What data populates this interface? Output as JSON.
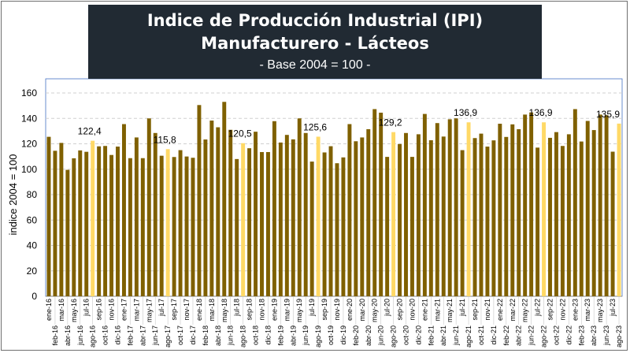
{
  "chart_data": {
    "type": "bar",
    "title": "Indice de Producción Industrial (IPI) Manufacturero - Lácteos",
    "subtitle": "- Base 2004 = 100 -",
    "xlabel": "",
    "ylabel": "indice 2004 = 100",
    "ylim": [
      0,
      160
    ],
    "yticks": [
      "0",
      "20",
      "40",
      "60",
      "80",
      "100",
      "120",
      "140",
      "160"
    ],
    "grid": true,
    "colors": {
      "normal": "#7f6000",
      "highlight": "#ffd966"
    },
    "categories": [
      "ene-16",
      "feb-16",
      "mar-16",
      "abr-16",
      "may-16",
      "jun-16",
      "jul-16",
      "ago-16",
      "sep-16",
      "oct-16",
      "nov-16",
      "dic-16",
      "ene-17",
      "feb-17",
      "mar-17",
      "abr-17",
      "may-17",
      "jun-17",
      "jul-17",
      "ago-17",
      "sep-17",
      "oct-17",
      "nov-17",
      "dic-17",
      "ene-18",
      "feb-18",
      "mar-18",
      "abr-18",
      "may-18",
      "jun-18",
      "jul-18",
      "ago-18",
      "sep-18",
      "oct-18",
      "nov-18",
      "dic-18",
      "ene-19",
      "feb-19",
      "mar-19",
      "abr-19",
      "may-19",
      "jun-19",
      "jul-19",
      "ago-19",
      "sep-19",
      "oct-19",
      "nov-19",
      "dic-19",
      "ene-20",
      "feb-20",
      "mar-20",
      "abr-20",
      "may-20",
      "jun-20",
      "jul-20",
      "ago-20",
      "sep-20",
      "oct-20",
      "nov-20",
      "dic-20",
      "ene-21",
      "feb-21",
      "mar-21",
      "abr-21",
      "may-21",
      "jun-21",
      "jul-21",
      "ago-21",
      "sep-21",
      "oct-21",
      "nov-21",
      "dic-21",
      "ene-22",
      "feb-22",
      "mar-22",
      "abr-22",
      "may-22",
      "jun-22",
      "jul-22",
      "ago-22",
      "sep-22",
      "oct-22",
      "nov-22",
      "dic-22",
      "ene-23",
      "feb-23",
      "mar-23",
      "abr-23",
      "may-23",
      "jun-23",
      "jul-23",
      "ago-23"
    ],
    "values": [
      125.5,
      114.5,
      120.7,
      99.5,
      108.6,
      114.8,
      113.7,
      122.4,
      118,
      118.3,
      111.2,
      117.8,
      135.5,
      108.7,
      125,
      108.7,
      140,
      128.5,
      110.6,
      115.8,
      109.6,
      115,
      110,
      109,
      150.5,
      123.4,
      138.3,
      133,
      153,
      131,
      108,
      120.5,
      116.5,
      129.5,
      113.5,
      113.5,
      137.8,
      121,
      127,
      123.5,
      140,
      128.5,
      106,
      125.6,
      113.2,
      118.1,
      104.7,
      109.3,
      135.5,
      122,
      125,
      131.5,
      147.3,
      144.5,
      109.7,
      129.2,
      119.8,
      128.5,
      109.7,
      127.5,
      143.5,
      122.8,
      136.3,
      125.7,
      139.3,
      140,
      115,
      136.9,
      124.5,
      128,
      117.8,
      122.7,
      135.8,
      125.4,
      135.3,
      131.5,
      143,
      144.7,
      117,
      136.9,
      124.7,
      129.2,
      118.3,
      127.5,
      147.3,
      121.8,
      138,
      130.8,
      143,
      142.5,
      113.8,
      135.9
    ],
    "highlighted": [
      "ago-16",
      "ago-17",
      "ago-18",
      "ago-19",
      "ago-20",
      "ago-21",
      "ago-22",
      "ago-23"
    ],
    "data_labels": {
      "ago-16": "122,4",
      "ago-17": "115,8",
      "ago-18": "120,5",
      "ago-19": "125,6",
      "ago-20": "129,2",
      "ago-21": "136,9",
      "ago-22": "136,9",
      "ago-23": "135,9"
    }
  }
}
